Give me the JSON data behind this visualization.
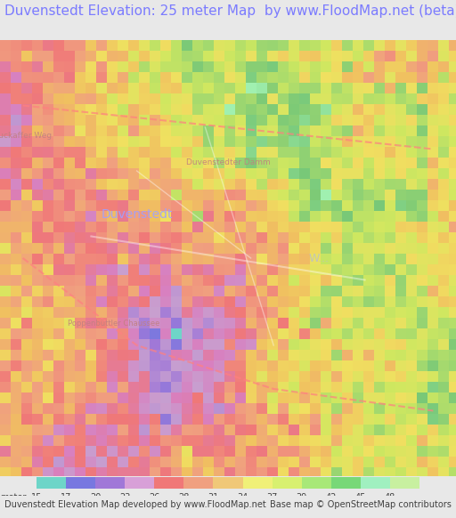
{
  "title": "Duvenstedt Elevation: 25 meter Map  by www.FloodMap.net (beta)",
  "title_color": "#7b7bff",
  "title_fontsize": 11,
  "background_color": "#e8e8e8",
  "map_bg": "#c8b0d8",
  "credit_left": "Duvenstedt Elevation Map developed by www.FloodMap.net",
  "credit_right": "Base map © OpenStreetMap contributors",
  "credit_fontsize": 7,
  "legend_labels": [
    15,
    17,
    20,
    23,
    26,
    28,
    31,
    34,
    37,
    39,
    42,
    45,
    48
  ],
  "legend_colors": [
    "#6ed5c8",
    "#7878e0",
    "#a078d8",
    "#d8a0d8",
    "#f07878",
    "#f0a080",
    "#f0c878",
    "#f0f078",
    "#d8f070",
    "#a8e878",
    "#78d878",
    "#a0f0c0",
    "#c8f0a0"
  ],
  "figsize": [
    5.12,
    5.82
  ],
  "dpi": 100
}
